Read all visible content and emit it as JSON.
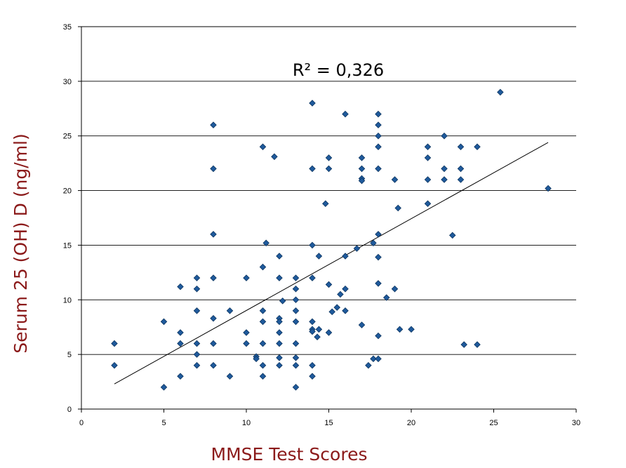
{
  "chart_data": {
    "type": "scatter",
    "xlabel": "MMSE Test Scores",
    "ylabel": "Serum 25 (OH) D (ng/ml)",
    "annotation_r2": "R² = 0,326",
    "xlim": [
      0,
      30
    ],
    "ylim": [
      0,
      35
    ],
    "xticks": [
      "0",
      "5",
      "10",
      "15",
      "20",
      "25",
      "30"
    ],
    "yticks": [
      "0",
      "5",
      "10",
      "15",
      "20",
      "25",
      "30",
      "35"
    ],
    "grid": "horizontal",
    "marker_color": "#1f5a9c",
    "label_color": "#8b1a1a",
    "trendline": {
      "x": [
        2,
        28.3
      ],
      "y": [
        2.3,
        24.4
      ]
    },
    "points": [
      [
        2,
        6
      ],
      [
        2,
        4
      ],
      [
        5,
        8
      ],
      [
        5,
        2
      ],
      [
        6,
        11.2
      ],
      [
        6,
        7
      ],
      [
        6,
        6
      ],
      [
        6,
        3
      ],
      [
        7,
        12
      ],
      [
        7,
        11
      ],
      [
        7,
        9
      ],
      [
        7,
        6
      ],
      [
        7,
        5
      ],
      [
        7,
        4
      ],
      [
        8,
        26
      ],
      [
        8,
        22
      ],
      [
        8,
        16
      ],
      [
        8,
        12
      ],
      [
        8,
        8.3
      ],
      [
        8,
        6
      ],
      [
        8,
        4
      ],
      [
        9,
        9
      ],
      [
        9,
        3
      ],
      [
        10,
        12
      ],
      [
        10,
        7
      ],
      [
        10,
        6
      ],
      [
        10.6,
        4.8
      ],
      [
        10.6,
        4.6
      ],
      [
        11,
        24
      ],
      [
        11,
        13
      ],
      [
        11,
        9
      ],
      [
        11,
        8
      ],
      [
        11,
        6
      ],
      [
        11,
        4
      ],
      [
        11,
        3
      ],
      [
        11.2,
        15.2
      ],
      [
        11.7,
        23.1
      ],
      [
        12,
        14
      ],
      [
        12,
        12
      ],
      [
        12,
        8.3
      ],
      [
        12,
        8
      ],
      [
        12,
        7
      ],
      [
        12,
        6
      ],
      [
        12,
        4.7
      ],
      [
        12,
        4
      ],
      [
        12.2,
        9.9
      ],
      [
        13,
        12
      ],
      [
        13,
        11
      ],
      [
        13,
        10
      ],
      [
        13,
        9
      ],
      [
        13,
        8
      ],
      [
        13,
        6
      ],
      [
        13,
        4.7
      ],
      [
        13,
        4
      ],
      [
        13,
        2
      ],
      [
        14,
        28
      ],
      [
        14,
        22
      ],
      [
        14,
        15
      ],
      [
        14,
        12
      ],
      [
        14,
        8
      ],
      [
        14,
        7.3
      ],
      [
        14,
        7.1
      ],
      [
        14,
        4
      ],
      [
        14,
        3
      ],
      [
        14.4,
        14
      ],
      [
        14.4,
        7.3
      ],
      [
        14.3,
        6.6
      ],
      [
        14.8,
        18.8
      ],
      [
        15,
        23
      ],
      [
        15,
        22
      ],
      [
        15,
        11.4
      ],
      [
        15,
        7
      ],
      [
        15.2,
        8.9
      ],
      [
        15.5,
        9.3
      ],
      [
        15.7,
        10.5
      ],
      [
        16,
        27
      ],
      [
        16,
        14
      ],
      [
        16,
        11
      ],
      [
        16,
        9
      ],
      [
        16.7,
        14.7
      ],
      [
        17,
        23
      ],
      [
        17,
        22
      ],
      [
        17,
        21.1
      ],
      [
        17,
        20.9
      ],
      [
        17,
        7.7
      ],
      [
        17.4,
        4
      ],
      [
        17.7,
        15.2
      ],
      [
        17.7,
        4.6
      ],
      [
        18,
        27
      ],
      [
        18,
        26
      ],
      [
        18,
        25
      ],
      [
        18,
        24
      ],
      [
        18,
        22
      ],
      [
        18,
        16
      ],
      [
        18,
        13.9
      ],
      [
        18,
        11.5
      ],
      [
        18,
        6.7
      ],
      [
        18,
        4.6
      ],
      [
        18.5,
        10.2
      ],
      [
        19,
        21
      ],
      [
        19,
        11
      ],
      [
        19.2,
        18.4
      ],
      [
        19.3,
        7.3
      ],
      [
        20,
        7.3
      ],
      [
        21,
        24
      ],
      [
        21,
        23
      ],
      [
        21,
        21
      ],
      [
        21,
        18.8
      ],
      [
        22,
        25
      ],
      [
        22,
        22
      ],
      [
        22,
        21
      ],
      [
        22.5,
        15.9
      ],
      [
        23,
        24
      ],
      [
        23,
        22
      ],
      [
        23,
        21
      ],
      [
        23.2,
        5.9
      ],
      [
        24,
        24
      ],
      [
        24,
        5.9
      ],
      [
        25.4,
        29
      ],
      [
        28.3,
        20.2
      ]
    ]
  }
}
